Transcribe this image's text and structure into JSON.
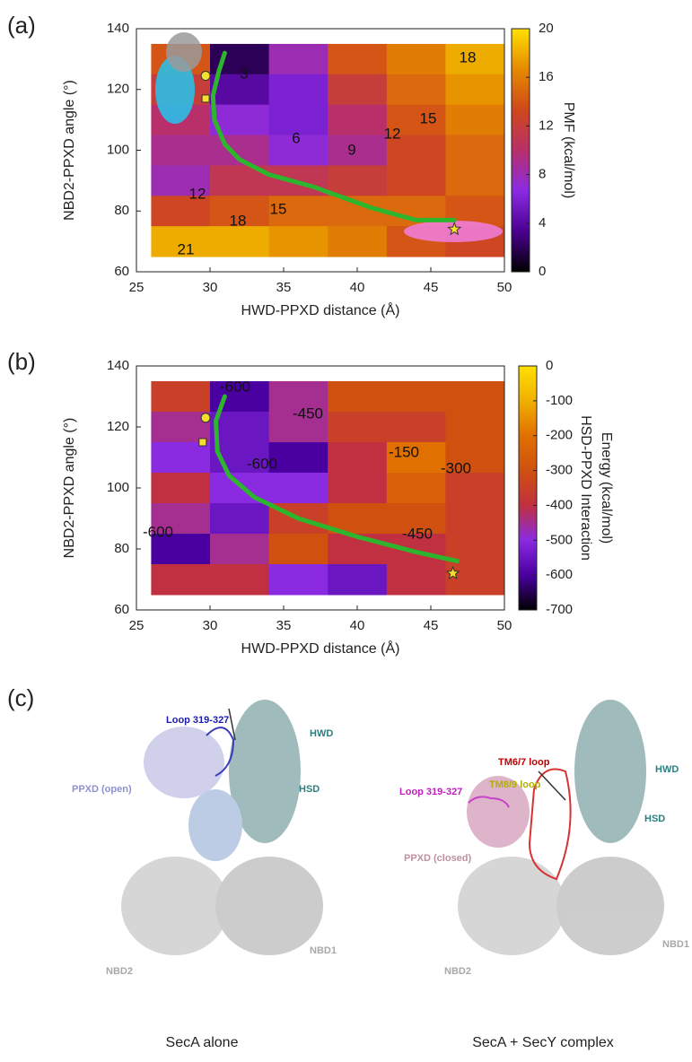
{
  "chart_data": [
    {
      "type": "heatmap",
      "panel_label": "(a)",
      "xlabel": "HWD-PPXD distance (Å)",
      "ylabel": "NBD2-PPXD angle (°)",
      "xlim": [
        25,
        50
      ],
      "ylim": [
        60,
        140
      ],
      "xticks": [
        25,
        30,
        35,
        40,
        45,
        50
      ],
      "yticks": [
        60,
        80,
        100,
        120,
        140
      ],
      "x": [
        28,
        32,
        36,
        40,
        44,
        48
      ],
      "y": [
        130,
        120,
        110,
        100,
        90,
        80,
        70
      ],
      "z": [
        [
          14,
          2,
          8,
          14,
          16,
          18
        ],
        [
          12,
          4,
          6,
          12,
          15,
          17
        ],
        [
          10,
          7,
          6,
          10,
          14,
          16
        ],
        [
          9,
          9,
          7,
          9,
          13,
          15
        ],
        [
          8,
          11,
          11,
          12,
          13,
          15
        ],
        [
          13,
          14,
          15,
          15,
          15,
          14
        ],
        [
          18,
          18,
          17,
          16,
          14,
          13
        ]
      ],
      "colorbar": {
        "label": "PMF (kcal/mol)",
        "lim": [
          0,
          20
        ],
        "ticks": [
          0,
          4,
          8,
          12,
          16,
          20
        ],
        "colormap": [
          "#000000",
          "#4b0091",
          "#8a2be2",
          "#b82f6a",
          "#d0481a",
          "#e58a00",
          "#ffe000"
        ]
      },
      "contour_labels": [
        "3",
        "6",
        "9",
        "12",
        "15",
        "18",
        "12",
        "15",
        "18",
        "21"
      ],
      "path": {
        "color": "#2db52d",
        "x": [
          31,
          30.6,
          30.2,
          30.3,
          31,
          32,
          34,
          37,
          41,
          44,
          46.6
        ],
        "y": [
          132,
          126,
          118,
          110,
          102,
          97,
          92,
          88,
          81,
          77,
          77
        ]
      },
      "markers": [
        {
          "shape": "circle",
          "x": 29.7,
          "y": 124.5,
          "color": "#f5e12b"
        },
        {
          "shape": "square",
          "x": 29.7,
          "y": 117,
          "color": "#f5e12b"
        },
        {
          "shape": "star",
          "x": 46.6,
          "y": 74,
          "color": "#f5e12b"
        }
      ]
    },
    {
      "type": "heatmap",
      "panel_label": "(b)",
      "xlabel": "HWD-PPXD distance (Å)",
      "ylabel": "NBD2-PPXD angle (°)",
      "xlim": [
        25,
        50
      ],
      "ylim": [
        60,
        140
      ],
      "xticks": [
        25,
        30,
        35,
        40,
        45,
        50
      ],
      "yticks": [
        60,
        80,
        100,
        120,
        140
      ],
      "x": [
        28,
        32,
        36,
        40,
        44,
        48
      ],
      "y": [
        130,
        120,
        110,
        100,
        90,
        80,
        70
      ],
      "z": [
        [
          -350,
          -600,
          -450,
          -300,
          -300,
          -300
        ],
        [
          -450,
          -550,
          -450,
          -350,
          -350,
          -300
        ],
        [
          -500,
          -550,
          -600,
          -400,
          -200,
          -300
        ],
        [
          -400,
          -500,
          -500,
          -400,
          -250,
          -350
        ],
        [
          -450,
          -550,
          -350,
          -300,
          -300,
          -350
        ],
        [
          -600,
          -450,
          -300,
          -400,
          -400,
          -350
        ],
        [
          -400,
          -400,
          -500,
          -550,
          -400,
          -350
        ]
      ],
      "colorbar": {
        "label": [
          "HSD-PPXD Interaction",
          "Energy (kcal/mol)"
        ],
        "lim": [
          -700,
          0
        ],
        "ticks": [
          -700,
          -600,
          -500,
          -400,
          -300,
          -200,
          -100,
          0
        ],
        "colormap": [
          "#000000",
          "#4a00a0",
          "#8a2be2",
          "#c03040",
          "#d05010",
          "#e07000",
          "#f0b000",
          "#ffe000"
        ]
      },
      "contour_labels": [
        "-600",
        "-450",
        "-600",
        "-150",
        "-300",
        "-600",
        "-450"
      ],
      "path": {
        "color": "#2db52d",
        "x": [
          31,
          30.4,
          30.5,
          31.3,
          33,
          36,
          40,
          44,
          46.8
        ],
        "y": [
          130,
          122,
          112,
          104,
          97,
          90,
          84,
          79,
          76
        ]
      },
      "markers": [
        {
          "shape": "circle",
          "x": 29.7,
          "y": 123,
          "color": "#f5e12b"
        },
        {
          "shape": "square",
          "x": 29.5,
          "y": 115,
          "color": "#f5e12b"
        },
        {
          "shape": "star",
          "x": 46.5,
          "y": 72,
          "color": "#f5e12b"
        }
      ]
    }
  ],
  "panel_c": {
    "panel_label": "(c)",
    "left": {
      "caption": "SecA alone",
      "loop": "Loop 319-327",
      "hwd": "HWD",
      "ppxd": "PPXD (open)",
      "hsd": "HSD",
      "nbd2": "NBD2",
      "nbd1": "NBD1"
    },
    "right": {
      "caption": "SecA + SecY complex",
      "tm67": "TM6/7 loop",
      "tm89": "TM8/9 loop",
      "loop": "Loop 319-327",
      "hwd": "HWD",
      "hsd": "HSD",
      "ppxd": "PPXD (closed)",
      "nbd2": "NBD2",
      "nbd1": "NBD1"
    }
  }
}
